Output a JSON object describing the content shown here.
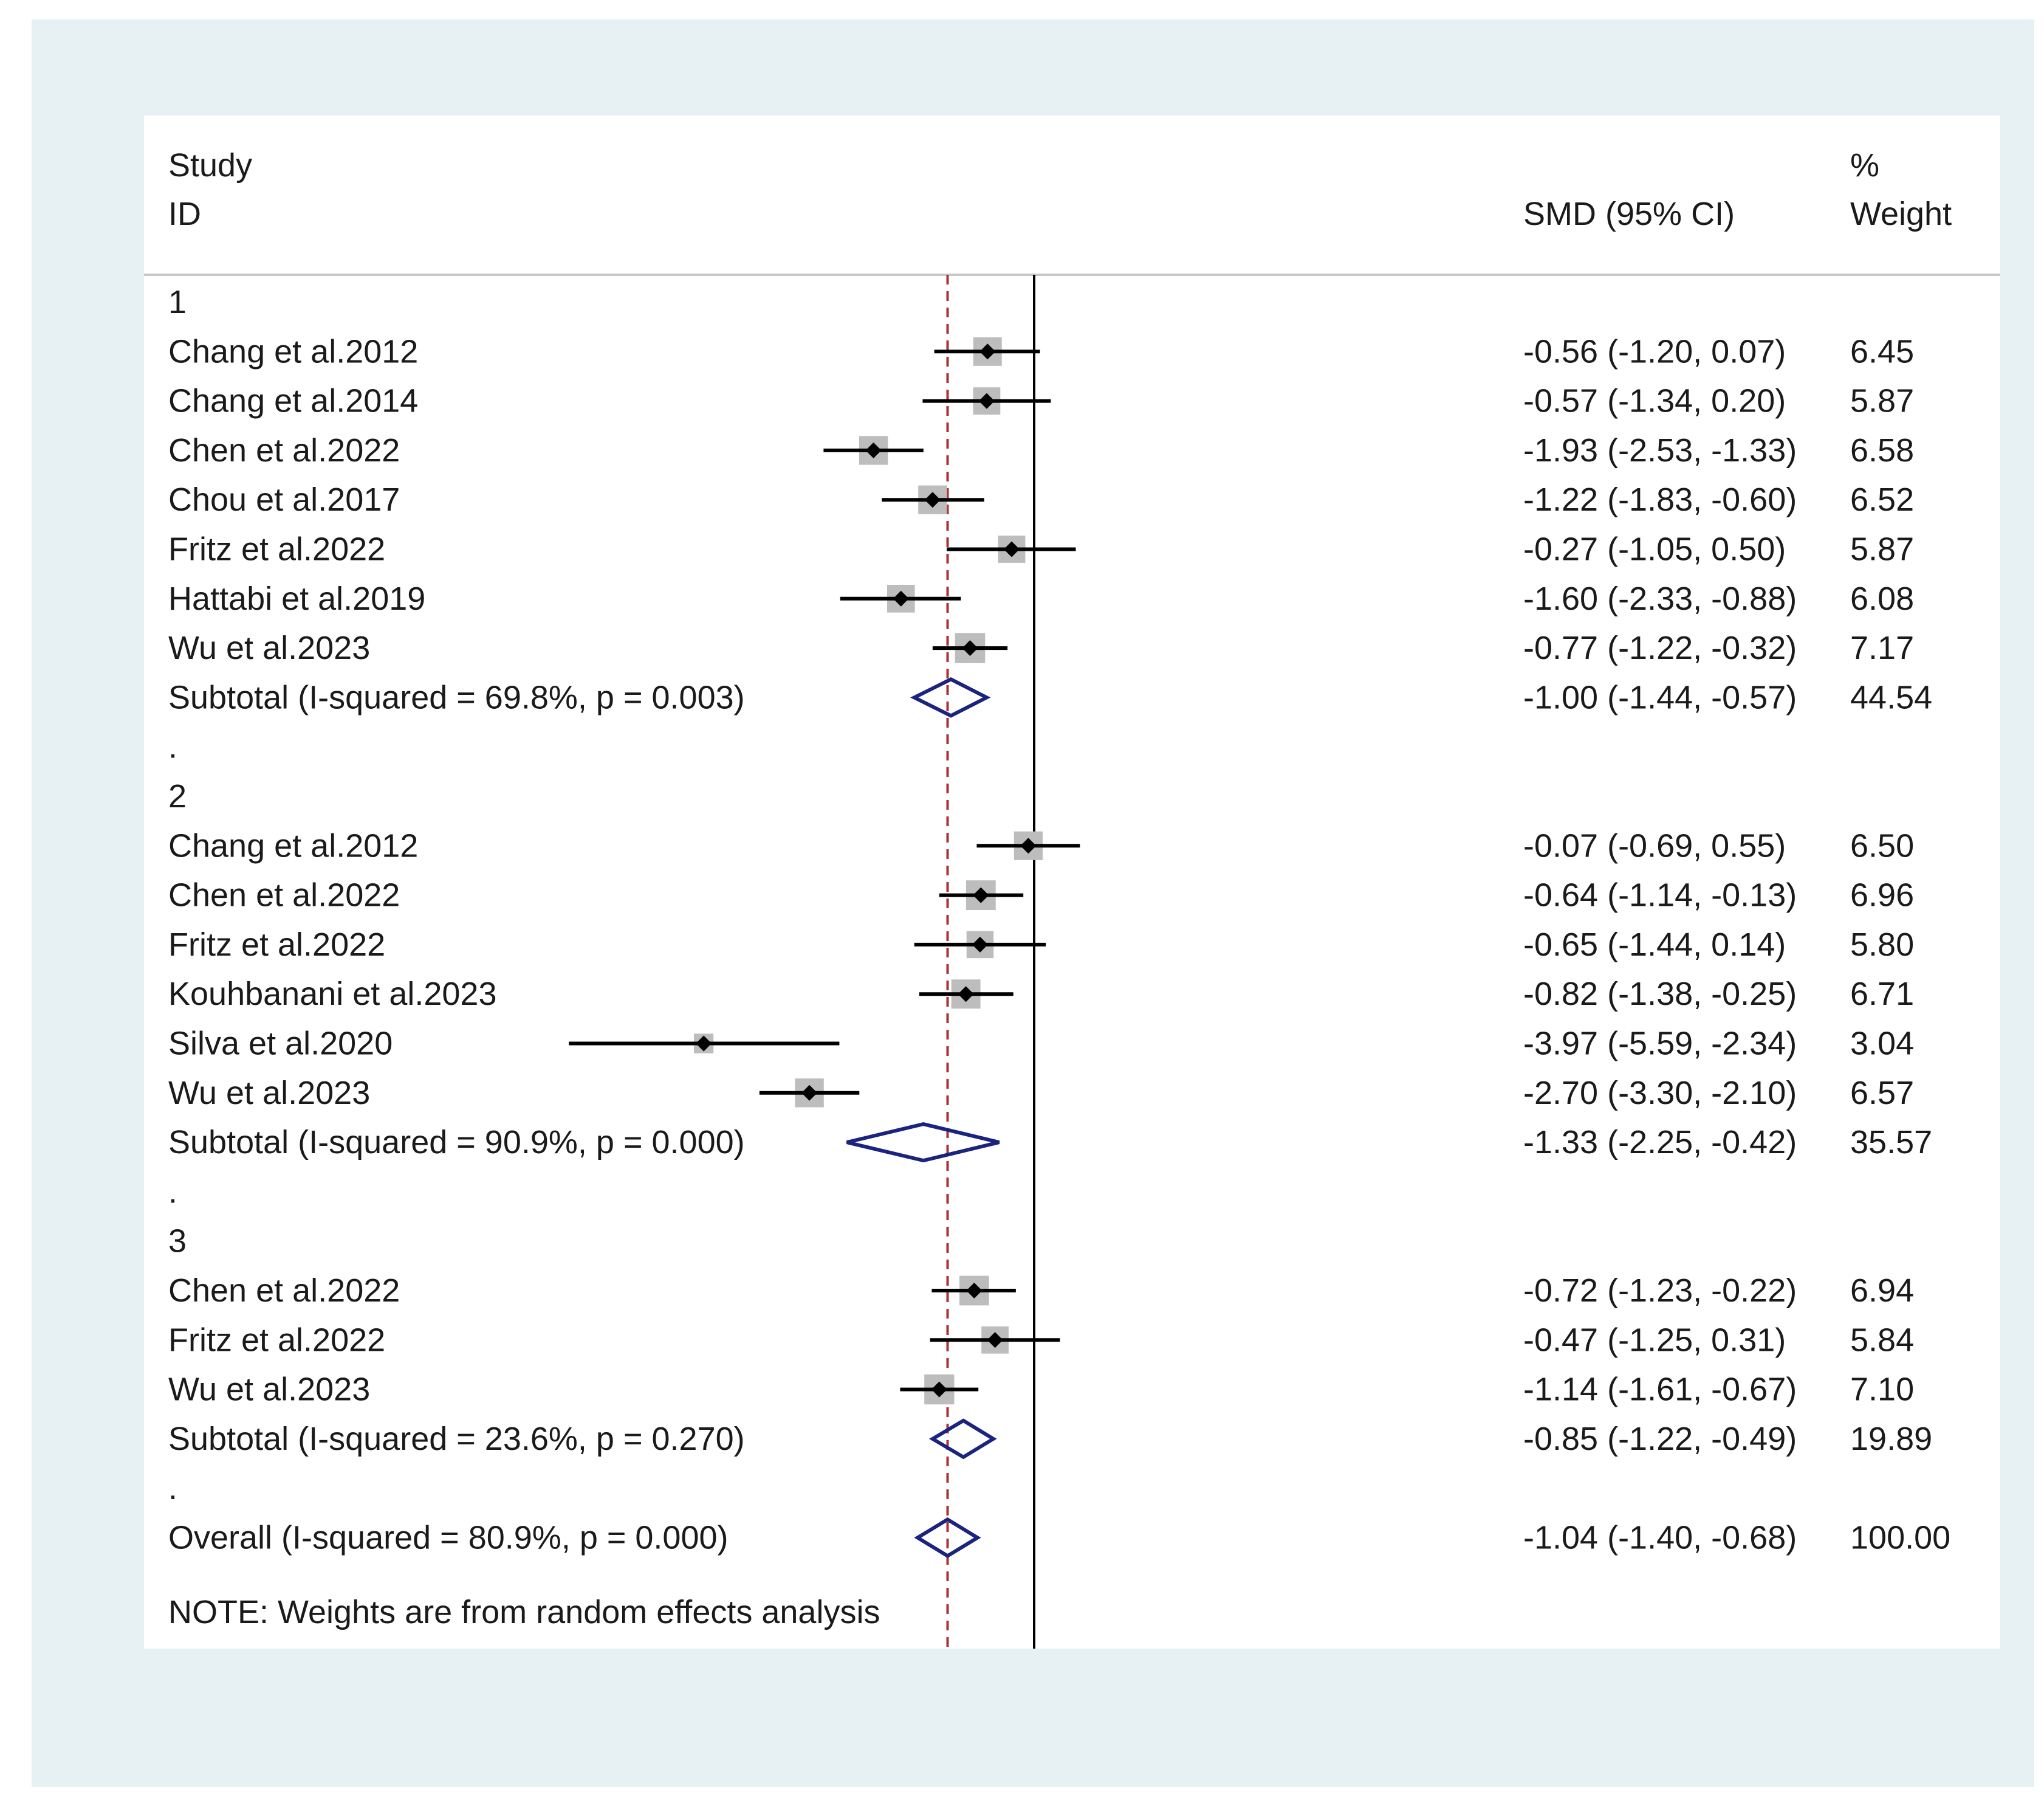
{
  "chart_data": {
    "type": "forest",
    "header": {
      "col1_line1": "Study",
      "col1_line2": "ID",
      "col2": "SMD (95% CI)",
      "col3_line1": "%",
      "col3_line2": "Weight"
    },
    "x_ticks": [
      {
        "value": -5.59,
        "label": "-5.59"
      },
      {
        "value": 0,
        "label": "0"
      },
      {
        "value": 5.59,
        "label": "5.59"
      }
    ],
    "xlim": [
      -11.0,
      11.3
    ],
    "overall_reference": -1.04,
    "rows": [
      {
        "kind": "group",
        "label": "1"
      },
      {
        "kind": "study",
        "label": "Chang et al.2012",
        "smd": -0.56,
        "lo": -1.2,
        "hi": 0.07,
        "ci": "-0.56 (-1.20, 0.07)",
        "weight": "6.45"
      },
      {
        "kind": "study",
        "label": "Chang et al.2014",
        "smd": -0.57,
        "lo": -1.34,
        "hi": 0.2,
        "ci": "-0.57 (-1.34, 0.20)",
        "weight": "5.87"
      },
      {
        "kind": "study",
        "label": "Chen et al.2022",
        "smd": -1.93,
        "lo": -2.53,
        "hi": -1.33,
        "ci": "-1.93 (-2.53, -1.33)",
        "weight": "6.58"
      },
      {
        "kind": "study",
        "label": "Chou et al.2017",
        "smd": -1.22,
        "lo": -1.83,
        "hi": -0.6,
        "ci": "-1.22 (-1.83, -0.60)",
        "weight": "6.52"
      },
      {
        "kind": "study",
        "label": "Fritz et al.2022",
        "smd": -0.27,
        "lo": -1.05,
        "hi": 0.5,
        "ci": "-0.27 (-1.05, 0.50)",
        "weight": "5.87"
      },
      {
        "kind": "study",
        "label": "Hattabi et al.2019",
        "smd": -1.6,
        "lo": -2.33,
        "hi": -0.88,
        "ci": "-1.60 (-2.33, -0.88)",
        "weight": "6.08"
      },
      {
        "kind": "study",
        "label": "Wu et al.2023",
        "smd": -0.77,
        "lo": -1.22,
        "hi": -0.32,
        "ci": "-0.77 (-1.22, -0.32)",
        "weight": "7.17"
      },
      {
        "kind": "subtotal",
        "label": "Subtotal  (I-squared = 69.8%, p = 0.003)",
        "smd": -1.0,
        "lo": -1.44,
        "hi": -0.57,
        "ci": "-1.00 (-1.44, -0.57)",
        "weight": "44.54"
      },
      {
        "kind": "dot",
        "label": "."
      },
      {
        "kind": "group",
        "label": "2"
      },
      {
        "kind": "study",
        "label": "Chang et al.2012",
        "smd": -0.07,
        "lo": -0.69,
        "hi": 0.55,
        "ci": "-0.07 (-0.69, 0.55)",
        "weight": "6.50"
      },
      {
        "kind": "study",
        "label": "Chen et al.2022",
        "smd": -0.64,
        "lo": -1.14,
        "hi": -0.13,
        "ci": "-0.64 (-1.14, -0.13)",
        "weight": "6.96"
      },
      {
        "kind": "study",
        "label": "Fritz et al.2022",
        "smd": -0.65,
        "lo": -1.44,
        "hi": 0.14,
        "ci": "-0.65 (-1.44, 0.14)",
        "weight": "5.80"
      },
      {
        "kind": "study",
        "label": "Kouhbanani et al.2023",
        "smd": -0.82,
        "lo": -1.38,
        "hi": -0.25,
        "ci": "-0.82 (-1.38, -0.25)",
        "weight": "6.71"
      },
      {
        "kind": "study",
        "label": "Silva et al.2020",
        "smd": -3.97,
        "lo": -5.59,
        "hi": -2.34,
        "ci": "-3.97 (-5.59, -2.34)",
        "weight": "3.04"
      },
      {
        "kind": "study",
        "label": "Wu et al.2023",
        "smd": -2.7,
        "lo": -3.3,
        "hi": -2.1,
        "ci": "-2.70 (-3.30, -2.10)",
        "weight": "6.57"
      },
      {
        "kind": "subtotal",
        "label": "Subtotal  (I-squared = 90.9%, p = 0.000)",
        "smd": -1.33,
        "lo": -2.25,
        "hi": -0.42,
        "ci": "-1.33 (-2.25, -0.42)",
        "weight": "35.57"
      },
      {
        "kind": "dot",
        "label": "."
      },
      {
        "kind": "group",
        "label": "3"
      },
      {
        "kind": "study",
        "label": "Chen et al.2022",
        "smd": -0.72,
        "lo": -1.23,
        "hi": -0.22,
        "ci": "-0.72 (-1.23, -0.22)",
        "weight": "6.94"
      },
      {
        "kind": "study",
        "label": "Fritz et al.2022",
        "smd": -0.47,
        "lo": -1.25,
        "hi": 0.31,
        "ci": "-0.47 (-1.25, 0.31)",
        "weight": "5.84"
      },
      {
        "kind": "study",
        "label": "Wu et al.2023",
        "smd": -1.14,
        "lo": -1.61,
        "hi": -0.67,
        "ci": "-1.14 (-1.61, -0.67)",
        "weight": "7.10"
      },
      {
        "kind": "subtotal",
        "label": "Subtotal  (I-squared = 23.6%, p = 0.270)",
        "smd": -0.85,
        "lo": -1.22,
        "hi": -0.49,
        "ci": "-0.85 (-1.22, -0.49)",
        "weight": "19.89"
      },
      {
        "kind": "dot",
        "label": "."
      },
      {
        "kind": "overall",
        "label": "Overall  (I-squared = 80.9%, p = 0.000)",
        "smd": -1.04,
        "lo": -1.4,
        "hi": -0.68,
        "ci": "-1.04 (-1.40, -0.68)",
        "weight": "100.00"
      }
    ],
    "note": "NOTE: Weights are from random effects analysis",
    "colors": {
      "background": "#e7f0f3",
      "panel": "#ffffff",
      "point": "#000000",
      "weight_box": "#bdbdbd",
      "diamond": "#1a237e",
      "null_line": "#000000",
      "overall_line": "#b03030"
    }
  }
}
